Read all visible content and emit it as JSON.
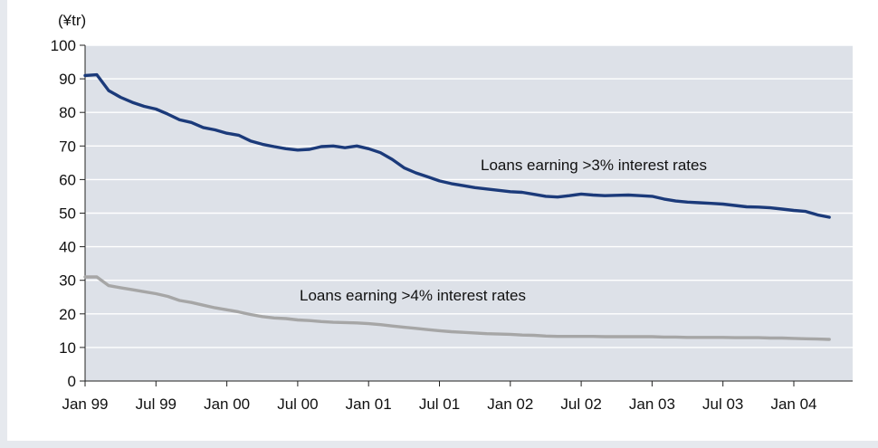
{
  "chart_data": {
    "type": "line",
    "y_unit": "(¥tr)",
    "ylim": [
      0,
      100
    ],
    "y_ticks": [
      0,
      10,
      20,
      30,
      40,
      50,
      60,
      70,
      80,
      90,
      100
    ],
    "x_ticks": [
      "Jan 99",
      "Jul 99",
      "Jan 00",
      "Jul 00",
      "Jan 01",
      "Jul 01",
      "Jan 02",
      "Jul 02",
      "Jan 03",
      "Jul 03",
      "Jan 04"
    ],
    "x_range_months": [
      0,
      64
    ],
    "grid": true,
    "plot_background": "#dde1e8",
    "series": [
      {
        "name": "Loans earning >3% interest rates",
        "color": "#1b3a7a",
        "points": [
          [
            0,
            91.0
          ],
          [
            1,
            91.2
          ],
          [
            2,
            86.5
          ],
          [
            3,
            84.5
          ],
          [
            4,
            83.0
          ],
          [
            5,
            81.8
          ],
          [
            6,
            81.0
          ],
          [
            7,
            79.5
          ],
          [
            8,
            77.8
          ],
          [
            9,
            77.0
          ],
          [
            10,
            75.5
          ],
          [
            11,
            74.8
          ],
          [
            12,
            73.8
          ],
          [
            13,
            73.2
          ],
          [
            14,
            71.5
          ],
          [
            15,
            70.5
          ],
          [
            16,
            69.8
          ],
          [
            17,
            69.2
          ],
          [
            18,
            68.8
          ],
          [
            19,
            69.0
          ],
          [
            20,
            69.8
          ],
          [
            21,
            70.0
          ],
          [
            22,
            69.5
          ],
          [
            23,
            70.0
          ],
          [
            24,
            69.2
          ],
          [
            25,
            68.0
          ],
          [
            26,
            66.0
          ],
          [
            27,
            63.5
          ],
          [
            28,
            62.0
          ],
          [
            29,
            60.8
          ],
          [
            30,
            59.6
          ],
          [
            31,
            58.8
          ],
          [
            32,
            58.2
          ],
          [
            33,
            57.6
          ],
          [
            34,
            57.2
          ],
          [
            35,
            56.8
          ],
          [
            36,
            56.4
          ],
          [
            37,
            56.2
          ],
          [
            38,
            55.6
          ],
          [
            39,
            55.0
          ],
          [
            40,
            54.8
          ],
          [
            41,
            55.2
          ],
          [
            42,
            55.7
          ],
          [
            43,
            55.4
          ],
          [
            44,
            55.2
          ],
          [
            45,
            55.3
          ],
          [
            46,
            55.4
          ],
          [
            47,
            55.2
          ],
          [
            48,
            55.0
          ],
          [
            49,
            54.2
          ],
          [
            50,
            53.6
          ],
          [
            51,
            53.3
          ],
          [
            52,
            53.1
          ],
          [
            53,
            52.9
          ],
          [
            54,
            52.7
          ],
          [
            55,
            52.3
          ],
          [
            56,
            51.9
          ],
          [
            57,
            51.8
          ],
          [
            58,
            51.6
          ],
          [
            59,
            51.2
          ],
          [
            60,
            50.8
          ],
          [
            61,
            50.5
          ],
          [
            62,
            49.5
          ],
          [
            63,
            48.8
          ]
        ]
      },
      {
        "name": "Loans earning >4% interest rates",
        "color": "#a6a6a6",
        "points": [
          [
            0,
            31.0
          ],
          [
            1,
            31.0
          ],
          [
            2,
            28.4
          ],
          [
            3,
            27.8
          ],
          [
            4,
            27.2
          ],
          [
            5,
            26.6
          ],
          [
            6,
            26.0
          ],
          [
            7,
            25.2
          ],
          [
            8,
            24.0
          ],
          [
            9,
            23.4
          ],
          [
            10,
            22.6
          ],
          [
            11,
            21.8
          ],
          [
            12,
            21.2
          ],
          [
            13,
            20.6
          ],
          [
            14,
            19.8
          ],
          [
            15,
            19.2
          ],
          [
            16,
            18.8
          ],
          [
            17,
            18.6
          ],
          [
            18,
            18.2
          ],
          [
            19,
            18.0
          ],
          [
            20,
            17.7
          ],
          [
            21,
            17.5
          ],
          [
            22,
            17.4
          ],
          [
            23,
            17.3
          ],
          [
            24,
            17.1
          ],
          [
            25,
            16.8
          ],
          [
            26,
            16.4
          ],
          [
            27,
            16.0
          ],
          [
            28,
            15.7
          ],
          [
            29,
            15.3
          ],
          [
            30,
            15.0
          ],
          [
            31,
            14.7
          ],
          [
            32,
            14.5
          ],
          [
            33,
            14.3
          ],
          [
            34,
            14.1
          ],
          [
            35,
            14.0
          ],
          [
            36,
            13.9
          ],
          [
            37,
            13.7
          ],
          [
            38,
            13.6
          ],
          [
            39,
            13.4
          ],
          [
            40,
            13.3
          ],
          [
            41,
            13.3
          ],
          [
            42,
            13.3
          ],
          [
            43,
            13.3
          ],
          [
            44,
            13.2
          ],
          [
            45,
            13.2
          ],
          [
            46,
            13.2
          ],
          [
            47,
            13.2
          ],
          [
            48,
            13.2
          ],
          [
            49,
            13.1
          ],
          [
            50,
            13.1
          ],
          [
            51,
            13.0
          ],
          [
            52,
            13.0
          ],
          [
            53,
            13.0
          ],
          [
            54,
            13.0
          ],
          [
            55,
            12.9
          ],
          [
            56,
            12.9
          ],
          [
            57,
            12.9
          ],
          [
            58,
            12.8
          ],
          [
            59,
            12.8
          ],
          [
            60,
            12.7
          ],
          [
            61,
            12.6
          ],
          [
            62,
            12.5
          ],
          [
            63,
            12.4
          ]
        ]
      }
    ],
    "annotations": [
      {
        "text": "Loans earning >3% interest rates",
        "series": 0
      },
      {
        "text": "Loans earning >4% interest rates",
        "series": 1
      }
    ]
  }
}
